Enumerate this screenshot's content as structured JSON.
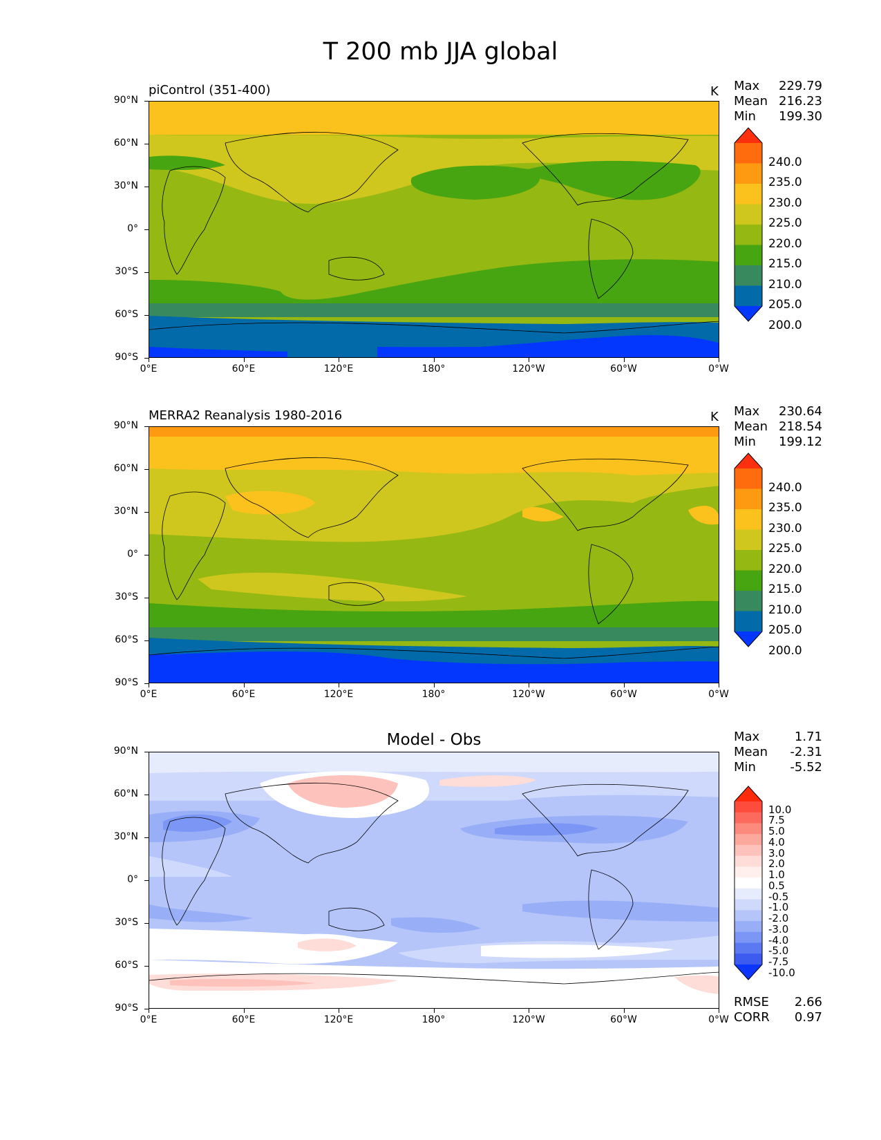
{
  "figure_title": "T 200 mb JJA global",
  "x_tick_labels": [
    "0°E",
    "60°E",
    "120°E",
    "180°",
    "120°W",
    "60°W",
    "0°W"
  ],
  "y_tick_labels": [
    "90°N",
    "60°N",
    "30°N",
    "0°",
    "30°S",
    "60°S",
    "90°S"
  ],
  "panels": [
    {
      "title": "piControl (351-400)",
      "units": "K",
      "stats": {
        "max_label": "Max",
        "max": "229.79",
        "mean_label": "Mean",
        "mean": "216.23",
        "min_label": "Min",
        "min": "199.30"
      },
      "colorbar_labels": [
        "240.0",
        "235.0",
        "230.0",
        "225.0",
        "220.0",
        "215.0",
        "210.0",
        "205.0",
        "200.0"
      ],
      "colorbar_colors": [
        "#fe3010",
        "#fe6c0d",
        "#fe9a11",
        "#fbc21e",
        "#cfc71e",
        "#95b813",
        "#46a510",
        "#388a5e",
        "#026aa9",
        "#0337fe"
      ]
    },
    {
      "title": "MERRA2 Reanalysis 1980-2016",
      "units": "K",
      "stats": {
        "max_label": "Max",
        "max": "230.64",
        "mean_label": "Mean",
        "mean": "218.54",
        "min_label": "Min",
        "min": "199.12"
      },
      "colorbar_labels": [
        "240.0",
        "235.0",
        "230.0",
        "225.0",
        "220.0",
        "215.0",
        "210.0",
        "205.0",
        "200.0"
      ],
      "colorbar_colors": [
        "#fe3010",
        "#fe6c0d",
        "#fe9a11",
        "#fbc21e",
        "#cfc71e",
        "#95b813",
        "#46a510",
        "#388a5e",
        "#026aa9",
        "#0337fe"
      ]
    },
    {
      "title": "Model - Obs",
      "units": "",
      "stats": {
        "max_label": "Max",
        "max": "1.71",
        "mean_label": "Mean",
        "mean": "-2.31",
        "min_label": "Min",
        "min": "-5.52"
      },
      "extra_stats": {
        "rmse_label": "RMSE",
        "rmse": "2.66",
        "corr_label": "CORR",
        "corr": "0.97"
      },
      "colorbar_labels": [
        "10.0",
        "7.5",
        "5.0",
        "4.0",
        "3.0",
        "2.0",
        "1.0",
        "0.5",
        "-0.5",
        "-1.0",
        "-2.0",
        "-3.0",
        "-4.0",
        "-5.0",
        "-7.5",
        "-10.0"
      ],
      "colorbar_colors": [
        "#fe2b0c",
        "#fd4b3c",
        "#fb6a5c",
        "#fc8b7e",
        "#fca89d",
        "#fdc2bb",
        "#fedcd8",
        "#fff0ee",
        "#ffffff",
        "#e7ecfd",
        "#cfd9fc",
        "#b5c5fa",
        "#98aff7",
        "#7b96f4",
        "#5b7af1",
        "#3c5cf0",
        "#0c35fe"
      ]
    }
  ]
}
